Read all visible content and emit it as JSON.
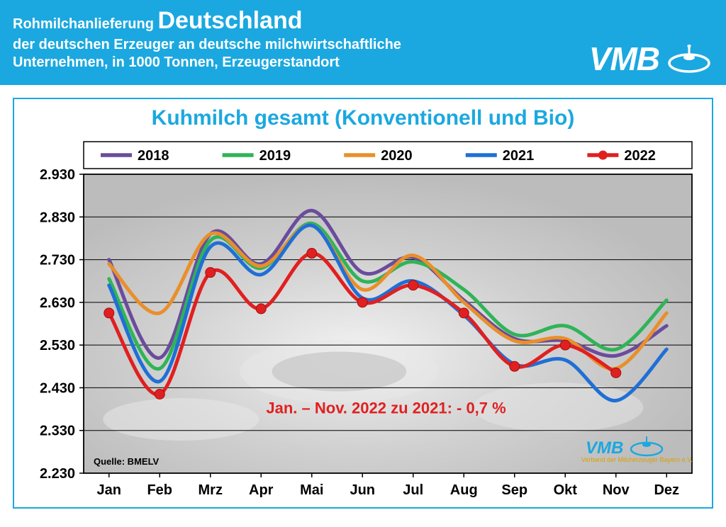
{
  "header": {
    "line1_prefix": "Rohmilchanlieferung ",
    "line1_big": "Deutschland",
    "line2": "der deutschen Erzeuger an deutsche milchwirtschaftliche\nUnternehmen, in 1000 Tonnen, Erzeugerstandort",
    "logo_text": "VMB",
    "bg_color": "#1ba8e0"
  },
  "chart": {
    "title": "Kuhmilch gesamt (Konventionell und Bio)",
    "type": "line",
    "categories": [
      "Jan",
      "Feb",
      "Mrz",
      "Apr",
      "Mai",
      "Jun",
      "Jul",
      "Aug",
      "Sep",
      "Okt",
      "Nov",
      "Dez"
    ],
    "ylim": [
      2230,
      2930
    ],
    "yticks": [
      2230,
      2330,
      2430,
      2530,
      2630,
      2730,
      2830,
      2930
    ],
    "ytick_labels": [
      "2.230",
      "2.330",
      "2.430",
      "2.530",
      "2.630",
      "2.730",
      "2.830",
      "2.930"
    ],
    "grid_color": "#000000",
    "plot_bg": "#d8d8d8",
    "line_width": 5,
    "marker_radius": 7,
    "series": [
      {
        "name": "2018",
        "color": "#6a4c9c",
        "markers": false,
        "values": [
          2730,
          2500,
          2790,
          2720,
          2845,
          2700,
          2735,
          2635,
          2545,
          2540,
          2505,
          2575
        ]
      },
      {
        "name": "2019",
        "color": "#2fb457",
        "markers": false,
        "values": [
          2685,
          2475,
          2775,
          2710,
          2815,
          2680,
          2725,
          2660,
          2555,
          2575,
          2520,
          2635
        ]
      },
      {
        "name": "2020",
        "color": "#e98f2b",
        "markers": false,
        "values": [
          2720,
          2605,
          2790,
          2715,
          2810,
          2660,
          2740,
          2630,
          2540,
          2545,
          2475,
          2605
        ]
      },
      {
        "name": "2021",
        "color": "#1f6fd6",
        "markers": false,
        "values": [
          2670,
          2445,
          2760,
          2695,
          2810,
          2640,
          2680,
          2600,
          2485,
          2495,
          2400,
          2520
        ]
      },
      {
        "name": "2022",
        "color": "#e02020",
        "markers": true,
        "values": [
          2605,
          2415,
          2700,
          2615,
          2745,
          2630,
          2670,
          2605,
          2480,
          2530,
          2465,
          null
        ]
      }
    ],
    "annotation": "Jan. – Nov. 2022 zu 2021: - 0,7 %",
    "source": "Quelle: BMELV",
    "logo2": "VMB",
    "logo2_sub": "Verband der Milcherzeuger Bayern e.V."
  }
}
